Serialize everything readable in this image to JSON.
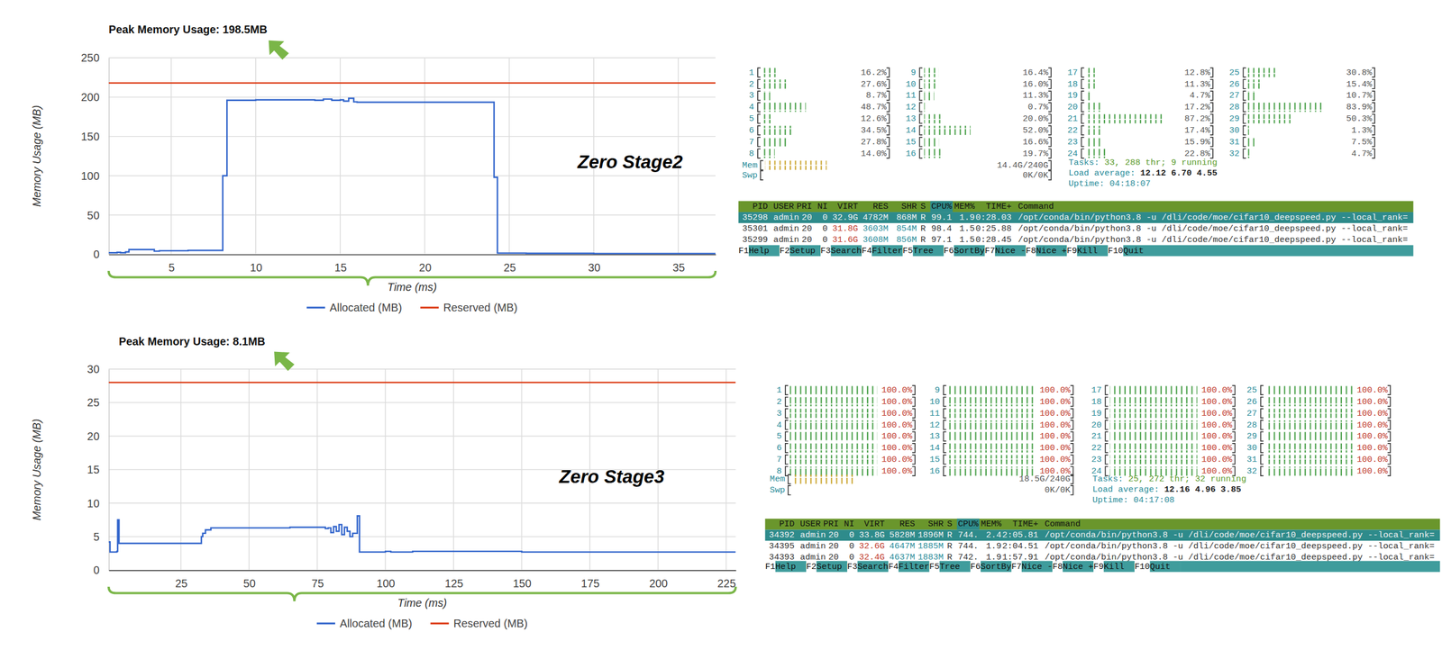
{
  "chart_data": [
    {
      "type": "line",
      "title": "Peak Memory Usage: 198.5MB",
      "annotation": "Zero Stage2",
      "x_label": "Time (ms)",
      "y_label": "Memory Usage (MB)",
      "x": [
        1.3,
        1.8,
        2.0,
        2.3,
        2.5,
        3.8,
        4.0,
        4.3,
        6,
        8.0,
        8.05,
        8.1,
        8.3,
        10,
        12,
        13.5,
        14,
        14.5,
        15,
        15.2,
        15.5,
        15.8,
        16,
        20,
        24,
        24.1,
        24.2,
        24.3,
        26,
        30,
        37.2
      ],
      "series": [
        {
          "name": "Allocated (MB)",
          "color": "#3366cc",
          "values": [
            2,
            2.5,
            2,
            3,
            6,
            6,
            4,
            4.5,
            5,
            5,
            100,
            100,
            196,
            196.5,
            196.5,
            196,
            197.5,
            196,
            196.5,
            195,
            198.5,
            194,
            193.5,
            193.5,
            193.5,
            98,
            98,
            1.5,
            1.2,
            1,
            1
          ]
        },
        {
          "name": "Reserved (MB)",
          "color": "#dc3912",
          "values": [
            218,
            218,
            218,
            218,
            218,
            218,
            218,
            218,
            218,
            218,
            218,
            218,
            218,
            218,
            218,
            218,
            218,
            218,
            218,
            218,
            218,
            218,
            218,
            218,
            218,
            218,
            218,
            218,
            218,
            218,
            218
          ]
        }
      ],
      "xlim": [
        1.3,
        37.2
      ],
      "ylim": [
        0,
        250
      ],
      "xticks": [
        5,
        10,
        15,
        20,
        25,
        30,
        35
      ],
      "yticks": [
        0,
        50,
        100,
        150,
        200,
        250
      ],
      "grid": true,
      "legend": "bottom"
    },
    {
      "type": "line",
      "title": "Peak Memory Usage: 8.1MB",
      "annotation": "Zero Stage3",
      "x_label": "Time (ms)",
      "y_label": "Memory Usage (MB)",
      "x": [
        -1.5,
        -1,
        1.5,
        1.8,
        2.3,
        32,
        32.5,
        33,
        34,
        36,
        50,
        65,
        78,
        79,
        80,
        81,
        82,
        83,
        84,
        85,
        86,
        87,
        88,
        89.7,
        90.5,
        100,
        102,
        110,
        140,
        150,
        200,
        228.5
      ],
      "series": [
        {
          "name": "Allocated (MB)",
          "color": "#3366cc",
          "values": [
            4.2,
            2.7,
            2.8,
            7.5,
            4,
            4,
            5,
            5.5,
            6,
            6.3,
            6.3,
            6.4,
            6.2,
            6.3,
            5.6,
            6.5,
            5.8,
            6.8,
            5.3,
            6.4,
            5.8,
            5,
            5.5,
            8.1,
            2.7,
            2.8,
            2.7,
            2.8,
            2.8,
            2.7,
            2.7,
            2.7
          ]
        },
        {
          "name": "Reserved (MB)",
          "color": "#dc3912",
          "values": [
            28,
            28,
            28,
            28,
            28,
            28,
            28,
            28,
            28,
            28,
            28,
            28,
            28,
            28,
            28,
            28,
            28,
            28,
            28,
            28,
            28,
            28,
            28,
            28,
            28,
            28,
            28,
            28,
            28,
            28,
            28,
            28
          ]
        }
      ],
      "xlim": [
        -1.5,
        228.5
      ],
      "ylim": [
        0,
        30
      ],
      "xticks": [
        25,
        50,
        75,
        100,
        125,
        150,
        175,
        200,
        225
      ],
      "yticks": [
        0,
        5,
        10,
        15,
        20,
        25,
        30
      ],
      "grid": true,
      "legend": "bottom"
    }
  ],
  "htop": [
    {
      "cpus": [
        {
          "id": 1,
          "value": 16.2,
          "label": "16.2%"
        },
        {
          "id": 2,
          "value": 27.6,
          "label": "27.6%"
        },
        {
          "id": 3,
          "value": 8.7,
          "label": "8.7%"
        },
        {
          "id": 4,
          "value": 48.7,
          "label": "48.7%"
        },
        {
          "id": 5,
          "value": 12.6,
          "label": "12.6%"
        },
        {
          "id": 6,
          "value": 34.5,
          "label": "34.5%"
        },
        {
          "id": 7,
          "value": 27.8,
          "label": "27.8%"
        },
        {
          "id": 8,
          "value": 14.0,
          "label": "14.0%"
        },
        {
          "id": 9,
          "value": 16.4,
          "label": "16.4%"
        },
        {
          "id": 10,
          "value": 16.0,
          "label": "16.0%"
        },
        {
          "id": 11,
          "value": 11.3,
          "label": "11.3%"
        },
        {
          "id": 12,
          "value": 0.7,
          "label": "0.7%"
        },
        {
          "id": 13,
          "value": 20.0,
          "label": "20.0%"
        },
        {
          "id": 14,
          "value": 52.0,
          "label": "52.0%"
        },
        {
          "id": 15,
          "value": 16.6,
          "label": "16.6%"
        },
        {
          "id": 16,
          "value": 19.7,
          "label": "19.7%"
        },
        {
          "id": 17,
          "value": 12.8,
          "label": "12.8%"
        },
        {
          "id": 18,
          "value": 11.3,
          "label": "11.3%"
        },
        {
          "id": 19,
          "value": 4.7,
          "label": "4.7%"
        },
        {
          "id": 20,
          "value": 17.2,
          "label": "17.2%"
        },
        {
          "id": 21,
          "value": 87.2,
          "label": "87.2%"
        },
        {
          "id": 22,
          "value": 17.4,
          "label": "17.4%"
        },
        {
          "id": 23,
          "value": 15.9,
          "label": "15.9%"
        },
        {
          "id": 24,
          "value": 22.8,
          "label": "22.8%"
        },
        {
          "id": 25,
          "value": 30.8,
          "label": "30.8%"
        },
        {
          "id": 26,
          "value": 15.4,
          "label": "15.4%"
        },
        {
          "id": 27,
          "value": 10.7,
          "label": "10.7%"
        },
        {
          "id": 28,
          "value": 83.9,
          "label": "83.9%"
        },
        {
          "id": 29,
          "value": 50.3,
          "label": "50.3%"
        },
        {
          "id": 30,
          "value": 1.3,
          "label": "1.3%"
        },
        {
          "id": 31,
          "value": 7.5,
          "label": "7.5%"
        },
        {
          "id": 32,
          "value": 4.7,
          "label": "4.7%"
        }
      ],
      "mem": {
        "label": "Mem",
        "value": "14.4G/240G"
      },
      "swp": {
        "label": "Swp",
        "value": "0K/0K"
      },
      "tasks": {
        "label": "Tasks:",
        "value": "33, 288 thr; 9 running"
      },
      "load": {
        "label": "Load average:",
        "value": "12.12 6.70 4.55"
      },
      "uptime": {
        "label": "Uptime:",
        "value": "04:18:07"
      },
      "columns": [
        "PID",
        "USER",
        "PRI",
        "NI",
        "VIRT",
        "RES",
        "SHR",
        "S",
        "CPU%",
        "MEM%",
        "TIME+",
        "Command"
      ],
      "rows": [
        [
          "35298",
          "admin",
          "20",
          "0",
          "32.9G",
          "4782M",
          "868M",
          "R",
          "99.1",
          "1.9",
          "0:28.03",
          "/opt/conda/bin/python3.8 -u /dli/code/moe/cifar10_deepspeed.py --local_rank="
        ],
        [
          "35301",
          "admin",
          "20",
          "0",
          "31.8G",
          "3603M",
          "854M",
          "R",
          "98.4",
          "1.5",
          "0:25.88",
          "/opt/conda/bin/python3.8 -u /dli/code/moe/cifar10_deepspeed.py --local_rank="
        ],
        [
          "35299",
          "admin",
          "20",
          "0",
          "31.6G",
          "3608M",
          "856M",
          "R",
          "97.1",
          "1.5",
          "0:28.45",
          "/opt/conda/bin/python3.8 -u /dli/code/moe/cifar10_deepspeed.py --local_rank="
        ]
      ],
      "fkeys": [
        {
          "key": "F1",
          "label": "Help"
        },
        {
          "key": "F2",
          "label": "Setup"
        },
        {
          "key": "F3",
          "label": "Search"
        },
        {
          "key": "F4",
          "label": "Filter"
        },
        {
          "key": "F5",
          "label": "Tree"
        },
        {
          "key": "F6",
          "label": "SortBy"
        },
        {
          "key": "F7",
          "label": "Nice -"
        },
        {
          "key": "F8",
          "label": "Nice +"
        },
        {
          "key": "F9",
          "label": "Kill"
        },
        {
          "key": "F10",
          "label": "Quit"
        }
      ]
    },
    {
      "cpus": [
        {
          "id": 1,
          "value": 100.0,
          "label": "100.0%"
        },
        {
          "id": 2,
          "value": 100.0,
          "label": "100.0%"
        },
        {
          "id": 3,
          "value": 100.0,
          "label": "100.0%"
        },
        {
          "id": 4,
          "value": 100.0,
          "label": "100.0%"
        },
        {
          "id": 5,
          "value": 100.0,
          "label": "100.0%"
        },
        {
          "id": 6,
          "value": 100.0,
          "label": "100.0%"
        },
        {
          "id": 7,
          "value": 100.0,
          "label": "100.0%"
        },
        {
          "id": 8,
          "value": 100.0,
          "label": "100.0%"
        },
        {
          "id": 9,
          "value": 100.0,
          "label": "100.0%"
        },
        {
          "id": 10,
          "value": 100.0,
          "label": "100.0%"
        },
        {
          "id": 11,
          "value": 100.0,
          "label": "100.0%"
        },
        {
          "id": 12,
          "value": 100.0,
          "label": "100.0%"
        },
        {
          "id": 13,
          "value": 100.0,
          "label": "100.0%"
        },
        {
          "id": 14,
          "value": 100.0,
          "label": "100.0%"
        },
        {
          "id": 15,
          "value": 100.0,
          "label": "100.0%"
        },
        {
          "id": 16,
          "value": 100.0,
          "label": "100.0%"
        },
        {
          "id": 17,
          "value": 100.0,
          "label": "100.0%"
        },
        {
          "id": 18,
          "value": 100.0,
          "label": "100.0%"
        },
        {
          "id": 19,
          "value": 100.0,
          "label": "100.0%"
        },
        {
          "id": 20,
          "value": 100.0,
          "label": "100.0%"
        },
        {
          "id": 21,
          "value": 100.0,
          "label": "100.0%"
        },
        {
          "id": 22,
          "value": 100.0,
          "label": "100.0%"
        },
        {
          "id": 23,
          "value": 100.0,
          "label": "100.0%"
        },
        {
          "id": 24,
          "value": 100.0,
          "label": "100.0%"
        },
        {
          "id": 25,
          "value": 100.0,
          "label": "100.0%"
        },
        {
          "id": 26,
          "value": 100.0,
          "label": "100.0%"
        },
        {
          "id": 27,
          "value": 100.0,
          "label": "100.0%"
        },
        {
          "id": 28,
          "value": 100.0,
          "label": "100.0%"
        },
        {
          "id": 29,
          "value": 100.0,
          "label": "100.0%"
        },
        {
          "id": 30,
          "value": 100.0,
          "label": "100.0%"
        },
        {
          "id": 31,
          "value": 100.0,
          "label": "100.0%"
        },
        {
          "id": 32,
          "value": 100.0,
          "label": "100.0%"
        }
      ],
      "mem": {
        "label": "Mem",
        "value": "18.5G/240G"
      },
      "swp": {
        "label": "Swp",
        "value": "0K/0K"
      },
      "tasks": {
        "label": "Tasks:",
        "value": "25, 272 thr; 32 running"
      },
      "load": {
        "label": "Load average:",
        "value": "12.16 4.96 3.85"
      },
      "uptime": {
        "label": "Uptime:",
        "value": "04:17:08"
      },
      "columns": [
        "PID",
        "USER",
        "PRI",
        "NI",
        "VIRT",
        "RES",
        "SHR",
        "S",
        "CPU%",
        "MEM%",
        "TIME+",
        "Command"
      ],
      "rows": [
        [
          "34392",
          "admin",
          "20",
          "0",
          "33.8G",
          "5828M",
          "1896M",
          "R",
          "744.",
          "2.4",
          "2:05.81",
          "/opt/conda/bin/python3.8 -u /dli/code/moe/cifar10_deepspeed.py --local_rank="
        ],
        [
          "34395",
          "admin",
          "20",
          "0",
          "32.6G",
          "4647M",
          "1885M",
          "R",
          "744.",
          "1.9",
          "2:04.51",
          "/opt/conda/bin/python3.8 -u /dli/code/moe/cifar10_deepspeed.py --local_rank="
        ],
        [
          "34393",
          "admin",
          "20",
          "0",
          "32.4G",
          "4637M",
          "1883M",
          "R",
          "742.",
          "1.9",
          "1:57.91",
          "/opt/conda/bin/python3.8 -u /dli/code/moe/cifar10_deepspeed.py --local_rank="
        ]
      ],
      "fkeys": [
        {
          "key": "F1",
          "label": "Help"
        },
        {
          "key": "F2",
          "label": "Setup"
        },
        {
          "key": "F3",
          "label": "Search"
        },
        {
          "key": "F4",
          "label": "Filter"
        },
        {
          "key": "F5",
          "label": "Tree"
        },
        {
          "key": "F6",
          "label": "SortBy"
        },
        {
          "key": "F7",
          "label": "Nice -"
        },
        {
          "key": "F8",
          "label": "Nice +"
        },
        {
          "key": "F9",
          "label": "Kill"
        },
        {
          "key": "F10",
          "label": "Quit"
        }
      ]
    }
  ]
}
